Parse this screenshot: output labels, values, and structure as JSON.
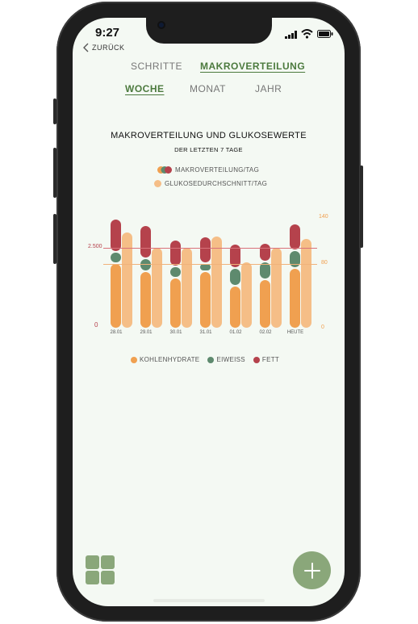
{
  "status": {
    "time": "9:27"
  },
  "nav": {
    "back_label": "ZURÜCK"
  },
  "tabs": [
    {
      "label": "SCHRITTE"
    },
    {
      "label": "MAKROVERTEILUNG"
    }
  ],
  "period_tabs": [
    {
      "label": "WOCHE"
    },
    {
      "label": "MONAT"
    },
    {
      "label": "JAHR"
    }
  ],
  "chart_data": {
    "type": "bar",
    "title": "MAKROVERTEILUNG UND GLUKOSEWERTE",
    "subtitle": "DER LETZTEN 7 TAGE",
    "legend_top": [
      "MAKROVERTEILUNG/TAG",
      "GLUKOSEDURCHSCHNITT/TAG"
    ],
    "categories": [
      "28.01",
      "29.01",
      "30.01",
      "31.01",
      "01.02",
      "02.02",
      "HEUTE"
    ],
    "series": [
      {
        "name": "KOHLENHYDRATE",
        "values": [
          2000,
          1750,
          1550,
          1750,
          1300,
          1500,
          1850
        ]
      },
      {
        "name": "EIWEISS",
        "values": [
          350,
          400,
          350,
          250,
          550,
          550,
          550
        ]
      },
      {
        "name": "FETT",
        "values": [
          1050,
          1050,
          850,
          850,
          750,
          600,
          850
        ]
      }
    ],
    "glucose": {
      "name": "GLUKOSEDURCHSCHNITT",
      "values": [
        120,
        100,
        100,
        115,
        82,
        100,
        112
      ]
    },
    "left_axis": {
      "ticks": [
        "0",
        "2.500"
      ],
      "ylim": [
        0,
        3500
      ]
    },
    "right_axis": {
      "ticks": [
        "0",
        "80",
        "140"
      ],
      "ylim": [
        0,
        140
      ]
    },
    "reference_lines": {
      "kcal": 2500,
      "glucose": 80
    },
    "legend_bottom": [
      "KOHLENHYDRATE",
      "EIWEISS",
      "FETT"
    ]
  },
  "colors": {
    "carbs": "#f0a050",
    "protein": "#5e8a6e",
    "fat": "#b5424c",
    "glucose": "#f5be87",
    "accent": "#4c7a3e"
  }
}
